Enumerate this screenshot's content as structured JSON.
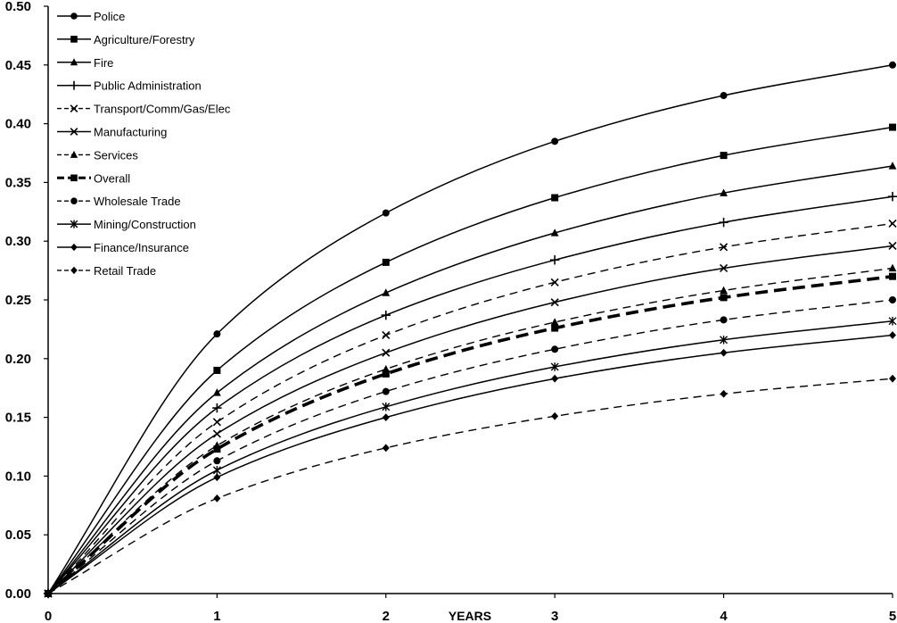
{
  "chart_data": {
    "type": "line",
    "title": "",
    "xlabel": "YEARS",
    "ylabel": "",
    "x": [
      0,
      1,
      2,
      3,
      4,
      5
    ],
    "x_ticks": [
      "0",
      "1",
      "2",
      "3",
      "4",
      "5"
    ],
    "xlim": [
      0,
      5
    ],
    "ylim": [
      0,
      0.5
    ],
    "y_ticks": [
      "0.00",
      "0.05",
      "0.10",
      "0.15",
      "0.20",
      "0.25",
      "0.30",
      "0.35",
      "0.40",
      "0.45",
      "0.50"
    ],
    "grid": false,
    "legend_position": "top-left",
    "series": [
      {
        "name": "Police",
        "values": [
          0,
          0.221,
          0.324,
          0.385,
          0.424,
          0.45
        ],
        "line": "solid",
        "marker": "circle"
      },
      {
        "name": "Agriculture/Forestry",
        "values": [
          0,
          0.19,
          0.282,
          0.337,
          0.373,
          0.397
        ],
        "line": "solid",
        "marker": "square"
      },
      {
        "name": "Fire",
        "values": [
          0,
          0.171,
          0.256,
          0.307,
          0.341,
          0.364
        ],
        "line": "solid",
        "marker": "triangle"
      },
      {
        "name": "Public Administration",
        "values": [
          0,
          0.158,
          0.237,
          0.284,
          0.316,
          0.338
        ],
        "line": "solid",
        "marker": "plus"
      },
      {
        "name": "Transport/Comm/Gas/Elec",
        "values": [
          0,
          0.146,
          0.22,
          0.265,
          0.295,
          0.315
        ],
        "line": "dash",
        "marker": "x"
      },
      {
        "name": "Manufacturing",
        "values": [
          0,
          0.136,
          0.205,
          0.248,
          0.277,
          0.296
        ],
        "line": "solid",
        "marker": "x"
      },
      {
        "name": "Services",
        "values": [
          0,
          0.126,
          0.191,
          0.231,
          0.258,
          0.277
        ],
        "line": "dash",
        "marker": "triangle"
      },
      {
        "name": "Overall",
        "values": [
          0,
          0.123,
          0.187,
          0.226,
          0.252,
          0.27
        ],
        "line": "bold-dash",
        "marker": "square"
      },
      {
        "name": "Wholesale Trade",
        "values": [
          0,
          0.113,
          0.172,
          0.208,
          0.233,
          0.25
        ],
        "line": "dash",
        "marker": "circle"
      },
      {
        "name": "Mining/Construction",
        "values": [
          0,
          0.105,
          0.159,
          0.193,
          0.216,
          0.232
        ],
        "line": "solid",
        "marker": "asterisk"
      },
      {
        "name": "Finance/Insurance",
        "values": [
          0,
          0.099,
          0.15,
          0.183,
          0.205,
          0.22
        ],
        "line": "solid",
        "marker": "diamond"
      },
      {
        "name": "Retail Trade",
        "values": [
          0,
          0.081,
          0.124,
          0.151,
          0.17,
          0.183
        ],
        "line": "dash",
        "marker": "diamond"
      }
    ]
  }
}
